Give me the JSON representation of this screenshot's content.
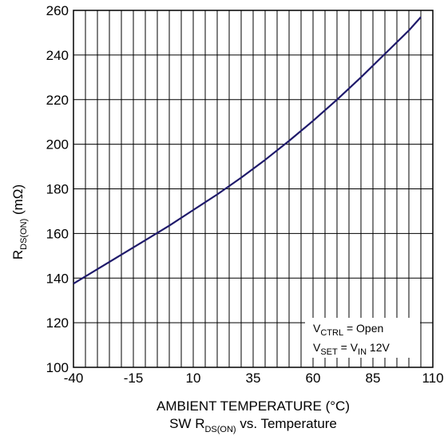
{
  "chart_data": {
    "type": "line",
    "xlabel": "AMBIENT TEMPERATURE (°C)",
    "ylabel_main": "R",
    "ylabel_sub": "DS(ON)",
    "ylabel_unit": " (mΩ)",
    "caption_main": "SW R",
    "caption_sub": "DS(ON)",
    "caption_rest": " vs. Temperature",
    "xlim": [
      -40,
      110
    ],
    "ylim": [
      100,
      260
    ],
    "x_ticks": [
      -40,
      -15,
      10,
      35,
      60,
      85,
      110
    ],
    "y_ticks": [
      100,
      120,
      140,
      160,
      180,
      200,
      220,
      240,
      260
    ],
    "grid": true,
    "x_minor_step": 5,
    "line_color": "#1f1a6b",
    "series": [
      {
        "x": [
          -40,
          -30,
          -20,
          -10,
          0,
          10,
          20,
          30,
          40,
          50,
          60,
          70,
          80,
          90,
          100,
          105
        ],
        "y": [
          137.5,
          144,
          150.5,
          157,
          163.5,
          170.5,
          177.5,
          185,
          193,
          201.5,
          210.5,
          220,
          230,
          240.5,
          251,
          257
        ]
      }
    ],
    "annotation": {
      "line1_v": "V",
      "line1_sub": "CTRL",
      "line1_rest": " = Open",
      "line2_v": "V",
      "line2_sub": "SET",
      "line2_mid": " = V",
      "line2_sub2": "IN",
      "line2_rest": " 12V"
    }
  }
}
